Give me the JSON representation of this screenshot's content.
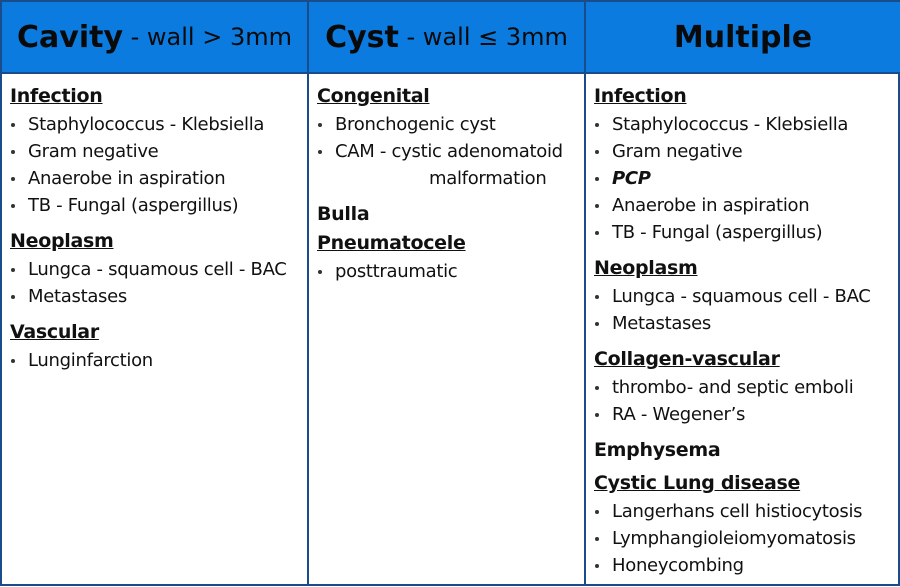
{
  "columns": [
    {
      "title_main": "Cavity",
      "title_sub": " - wall > 3mm",
      "groups": [
        {
          "heading": "Infection",
          "items": [
            "Staphylococcus - Klebsiella",
            "Gram negative",
            "Anaerobe in aspiration",
            "TB - Fungal (aspergillus)"
          ]
        },
        {
          "heading": "Neoplasm",
          "items": [
            "Lungca -  squamous cell - BAC",
            "Metastases"
          ]
        },
        {
          "heading": "Vascular",
          "items": [
            "Lunginfarction"
          ]
        }
      ]
    },
    {
      "title_main": "Cyst",
      "title_sub": " - wall ≤ 3mm",
      "groups": [
        {
          "heading": "Congenital",
          "items": [
            "Bronchogenic cyst",
            "CAM - cystic adenomatoid",
            "malformation"
          ]
        },
        {
          "heading": "Bulla",
          "items": []
        },
        {
          "heading": "Pneumatocele",
          "items": [
            "posttraumatic"
          ]
        }
      ]
    },
    {
      "title_main": "Multiple",
      "title_sub": "",
      "groups": [
        {
          "heading": "Infection",
          "items": [
            "Staphylococcus - Klebsiella",
            "Gram negative",
            "PCP",
            "Anaerobe in aspiration",
            "TB - Fungal (aspergillus)"
          ]
        },
        {
          "heading": "Neoplasm",
          "items": [
            "Lungca -  squamous cell - BAC",
            "Metastases"
          ]
        },
        {
          "heading": "Collagen-vascular",
          "items": [
            "thrombo- and septic emboli",
            "RA - Wegener’s"
          ]
        },
        {
          "heading": "Emphysema",
          "items": []
        },
        {
          "heading": "Cystic Lung disease",
          "items": [
            "Langerhans cell histiocytosis",
            "Lymphangioleiomyomatosis",
            "Honeycombing"
          ]
        }
      ]
    }
  ]
}
